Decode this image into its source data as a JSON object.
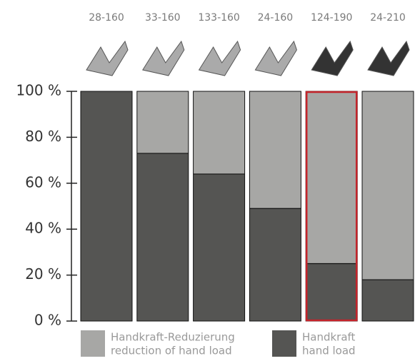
{
  "chart_data": {
    "type": "stacked-bar",
    "categories": [
      "28-160",
      "33-160",
      "133-160",
      "24-160",
      "124-190",
      "24-210"
    ],
    "series": [
      {
        "name": "Handkraft",
        "subname": "hand load",
        "color": "#555553",
        "values": [
          100,
          73,
          64,
          49,
          25,
          18
        ]
      },
      {
        "name": "Handkraft-Reduzierung",
        "subname": "reduction of hand load",
        "color": "#a7a7a5",
        "values": [
          0,
          27,
          36,
          51,
          75,
          82
        ]
      }
    ],
    "ylim": [
      0,
      100
    ],
    "yticks": [
      {
        "value": 0,
        "label": "0 %"
      },
      {
        "value": 20,
        "label": "20 %"
      },
      {
        "value": 40,
        "label": "40 %"
      },
      {
        "value": 60,
        "label": "60 %"
      },
      {
        "value": 80,
        "label": "80 %"
      },
      {
        "value": 100,
        "label": "100 %"
      }
    ],
    "highlight": 4,
    "highlight_color": "#c4242b"
  }
}
